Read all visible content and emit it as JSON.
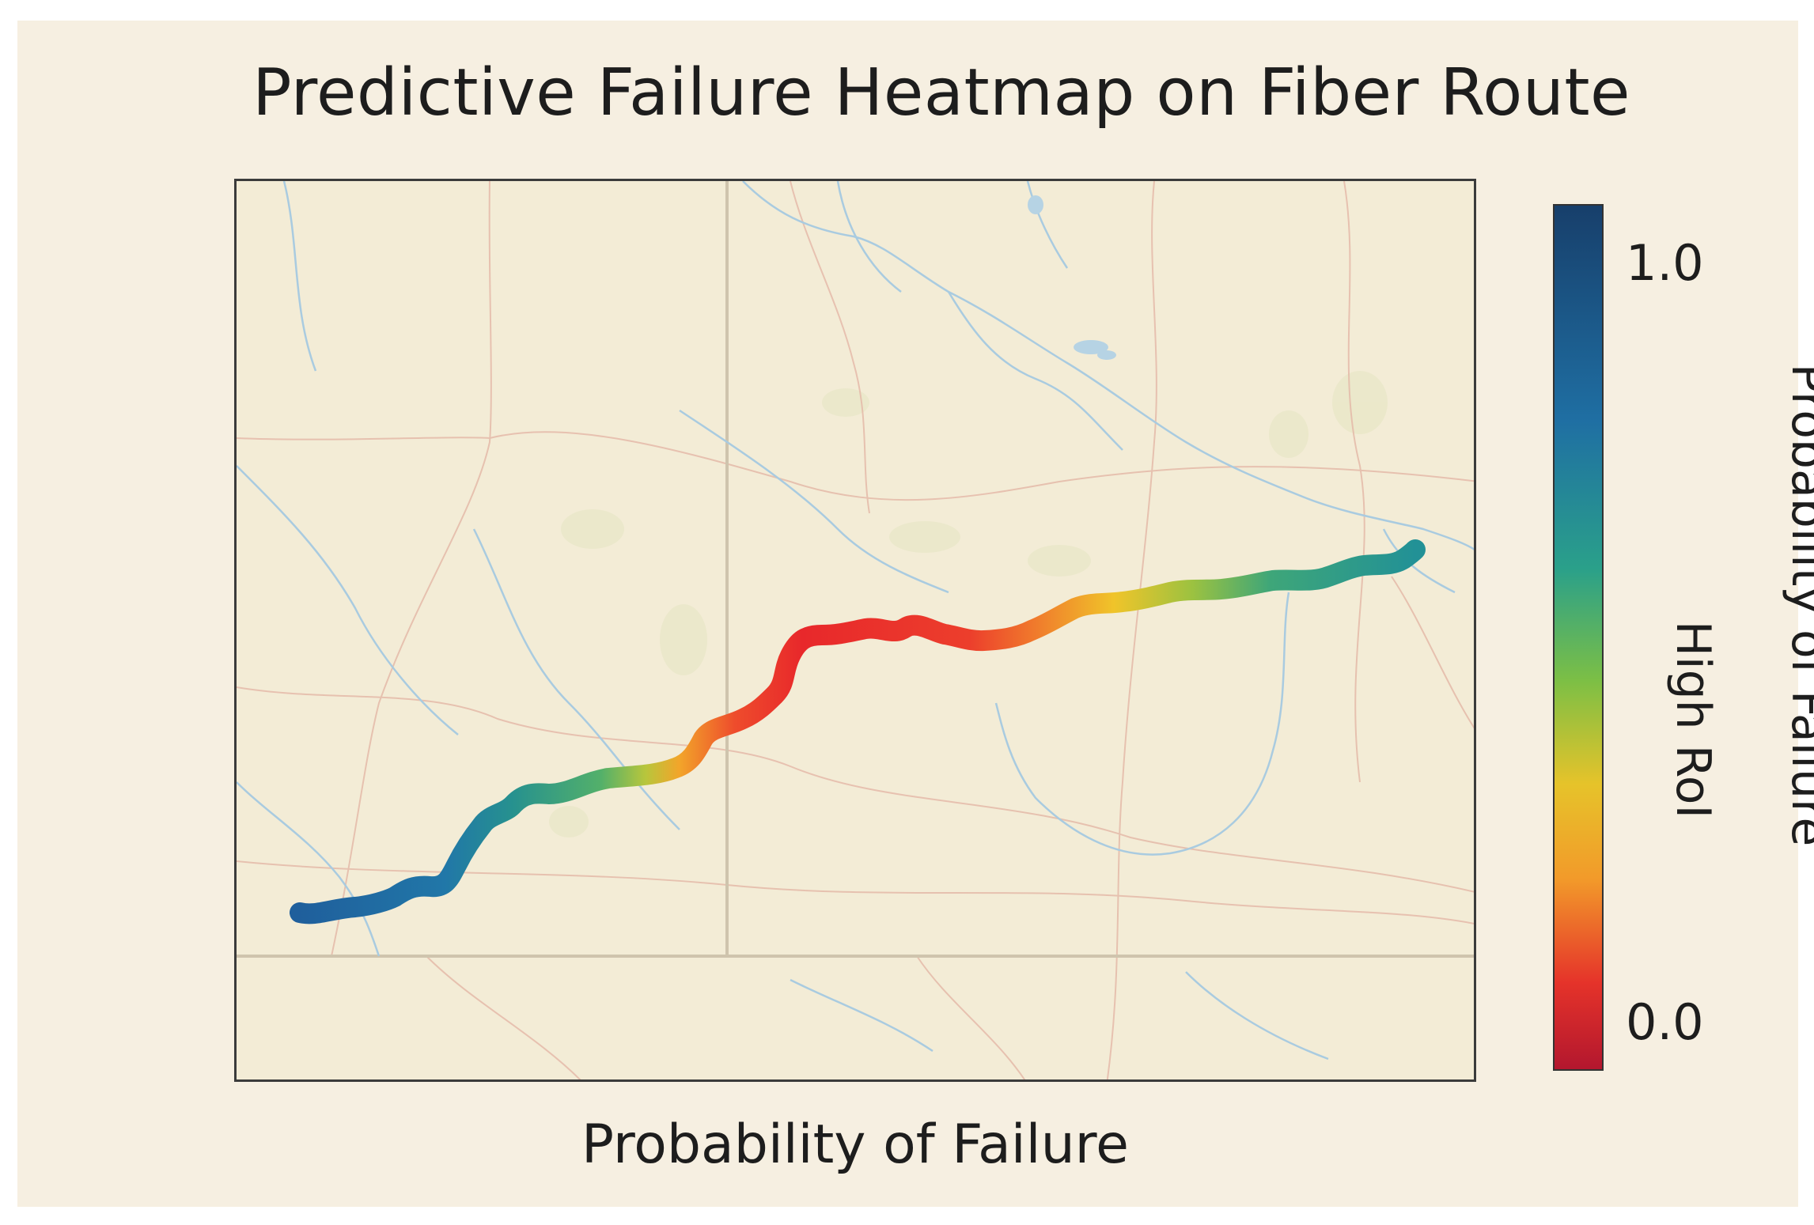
{
  "title": "Predictive Failure Heatmap on Fiber Route",
  "x_label": "Probability of Failure",
  "colorbar": {
    "label_outer": "Probability of Failure",
    "label_inner": "High RoI",
    "tick_top": "1.0",
    "tick_bottom": "0.0",
    "colors_top_to_bottom": [
      "#173f6b",
      "#1f6fa3",
      "#2aa08a",
      "#7cbf45",
      "#e6c32a",
      "#f29a2a",
      "#e5332a",
      "#b3172e"
    ]
  },
  "route": {
    "description_colors": {
      "west_end": "#1f6fa3",
      "middle": "#e5332a",
      "east_end": "#2aa08a"
    }
  }
}
